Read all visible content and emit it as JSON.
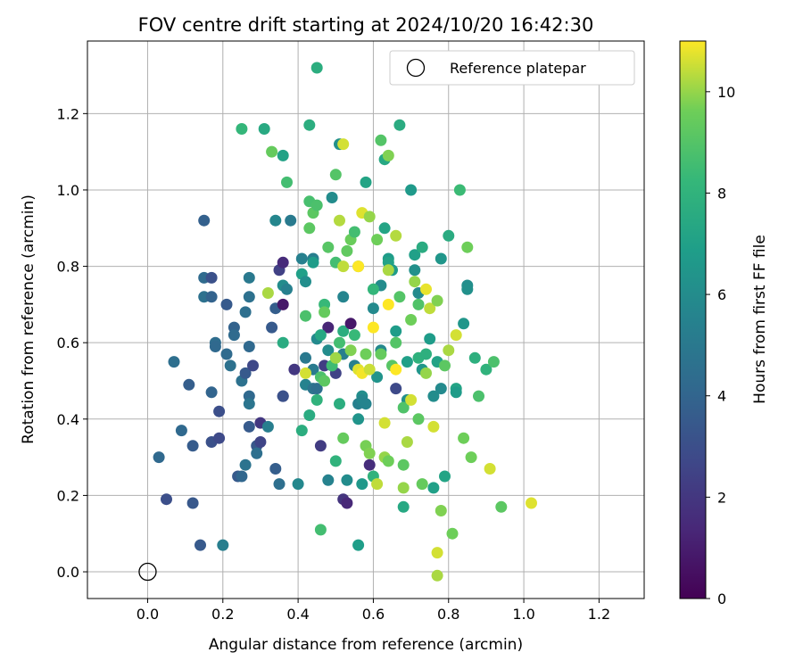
{
  "colors": {
    "background": "#ffffff",
    "grid": "#b0b0b0",
    "reference_marker": "#000000",
    "colormap": "viridis"
  },
  "chart_data": {
    "type": "scatter",
    "title": "FOV centre drift starting at 2024/10/20 16:42:30",
    "xlabel": "Angular distance from reference (arcmin)",
    "ylabel": "Rotation from reference (arcmin)",
    "xlim": [
      -0.16,
      1.32
    ],
    "ylim": [
      -0.07,
      1.39
    ],
    "xticks": [
      0.0,
      0.2,
      0.4,
      0.6,
      0.8,
      1.0,
      1.2
    ],
    "xtick_labels": [
      "0.0",
      "0.2",
      "0.4",
      "0.6",
      "0.8",
      "1.0",
      "1.2"
    ],
    "yticks": [
      0.0,
      0.2,
      0.4,
      0.6,
      0.8,
      1.0,
      1.2
    ],
    "ytick_labels": [
      "0.0",
      "0.2",
      "0.4",
      "0.6",
      "0.8",
      "1.0",
      "1.2"
    ],
    "grid": true,
    "legend": {
      "position": "top-right",
      "entries": [
        {
          "label": "Reference platepar",
          "marker": "open-circle"
        }
      ]
    },
    "reference_point": {
      "x": 0.0,
      "y": 0.0
    },
    "colorbar": {
      "label": "Hours from first FF file",
      "min": 0,
      "max": 11,
      "ticks": [
        0,
        2,
        4,
        6,
        8,
        10
      ],
      "tick_labels": [
        "0",
        "2",
        "4",
        "6",
        "8",
        "10"
      ]
    },
    "points": [
      [
        0.03,
        0.3,
        4.2
      ],
      [
        0.05,
        0.19,
        3.0
      ],
      [
        0.07,
        0.55,
        4.5
      ],
      [
        0.09,
        0.37,
        4.2
      ],
      [
        0.11,
        0.49,
        3.7
      ],
      [
        0.12,
        0.18,
        3.4
      ],
      [
        0.12,
        0.33,
        3.6
      ],
      [
        0.14,
        0.07,
        3.5
      ],
      [
        0.15,
        0.92,
        3.8
      ],
      [
        0.15,
        0.77,
        4.3
      ],
      [
        0.15,
        0.72,
        4.6
      ],
      [
        0.17,
        0.77,
        3.1
      ],
      [
        0.17,
        0.72,
        3.9
      ],
      [
        0.17,
        0.47,
        4.0
      ],
      [
        0.17,
        0.34,
        3.1
      ],
      [
        0.18,
        0.6,
        4.4
      ],
      [
        0.18,
        0.59,
        4.2
      ],
      [
        0.19,
        0.42,
        3.0
      ],
      [
        0.19,
        0.35,
        2.8
      ],
      [
        0.2,
        0.07,
        5.3
      ],
      [
        0.21,
        0.7,
        3.5
      ],
      [
        0.21,
        0.57,
        4.3
      ],
      [
        0.22,
        0.54,
        4.6
      ],
      [
        0.23,
        0.64,
        3.9
      ],
      [
        0.23,
        0.62,
        4.3
      ],
      [
        0.24,
        0.25,
        3.5
      ],
      [
        0.25,
        0.25,
        4.1
      ],
      [
        0.25,
        0.5,
        4.6
      ],
      [
        0.26,
        0.68,
        4.5
      ],
      [
        0.26,
        0.52,
        3.5
      ],
      [
        0.26,
        0.28,
        4.7
      ],
      [
        0.27,
        0.72,
        4.6
      ],
      [
        0.27,
        0.77,
        5.0
      ],
      [
        0.27,
        0.59,
        4.2
      ],
      [
        0.27,
        0.46,
        4.2
      ],
      [
        0.27,
        0.44,
        4.8
      ],
      [
        0.27,
        0.38,
        3.5
      ],
      [
        0.28,
        0.54,
        2.7
      ],
      [
        0.29,
        0.33,
        3.4
      ],
      [
        0.29,
        0.31,
        4.5
      ],
      [
        0.3,
        0.39,
        2.0
      ],
      [
        0.3,
        0.34,
        2.6
      ],
      [
        0.32,
        0.38,
        5.3
      ],
      [
        0.33,
        0.64,
        3.5
      ],
      [
        0.34,
        0.69,
        3.7
      ],
      [
        0.34,
        0.27,
        3.7
      ],
      [
        0.34,
        0.92,
        5.7
      ],
      [
        0.35,
        0.79,
        2.4
      ],
      [
        0.36,
        0.81,
        1.5
      ],
      [
        0.36,
        0.75,
        6.0
      ],
      [
        0.36,
        0.7,
        0.8
      ],
      [
        0.36,
        0.46,
        2.6
      ],
      [
        0.36,
        0.46,
        3.1
      ],
      [
        0.35,
        0.23,
        4.5
      ],
      [
        0.37,
        0.74,
        5.4
      ],
      [
        0.38,
        0.92,
        5.1
      ],
      [
        0.39,
        0.53,
        2.0
      ],
      [
        0.4,
        0.23,
        5.8
      ],
      [
        0.41,
        0.78,
        7.0
      ],
      [
        0.41,
        0.82,
        5.4
      ],
      [
        0.42,
        0.76,
        6.1
      ],
      [
        0.42,
        0.56,
        5.0
      ],
      [
        0.42,
        0.49,
        5.5
      ],
      [
        0.43,
        0.41,
        7.6
      ],
      [
        0.44,
        0.82,
        5.3
      ],
      [
        0.44,
        0.81,
        6.8
      ],
      [
        0.44,
        0.53,
        5.1
      ],
      [
        0.44,
        0.48,
        4.8
      ],
      [
        0.45,
        0.61,
        5.9
      ],
      [
        0.45,
        0.48,
        4.5
      ],
      [
        0.46,
        0.33,
        2.2
      ],
      [
        0.46,
        0.11,
        8.6
      ],
      [
        0.47,
        0.54,
        2.3
      ],
      [
        0.48,
        0.64,
        1.3
      ],
      [
        0.48,
        0.58,
        6.0
      ],
      [
        0.48,
        0.24,
        5.5
      ],
      [
        0.49,
        0.98,
        6.0
      ],
      [
        0.5,
        0.52,
        2.5
      ],
      [
        0.5,
        0.29,
        8.0
      ],
      [
        0.51,
        1.12,
        6.2
      ],
      [
        0.52,
        0.72,
        5.6
      ],
      [
        0.52,
        0.63,
        7.7
      ],
      [
        0.52,
        0.57,
        5.3
      ],
      [
        0.52,
        0.19,
        1.9
      ],
      [
        0.53,
        0.18,
        1.4
      ],
      [
        0.53,
        0.24,
        6.0
      ],
      [
        0.54,
        0.65,
        0.8
      ],
      [
        0.55,
        0.54,
        5.4
      ],
      [
        0.56,
        0.44,
        5.4
      ],
      [
        0.56,
        0.4,
        6.4
      ],
      [
        0.56,
        0.07,
        6.9
      ],
      [
        0.57,
        0.46,
        6.1
      ],
      [
        0.57,
        0.45,
        5.7
      ],
      [
        0.57,
        0.23,
        6.6
      ],
      [
        0.58,
        1.02,
        7.2
      ],
      [
        0.58,
        0.44,
        5.6
      ],
      [
        0.59,
        0.28,
        1.6
      ],
      [
        0.6,
        0.69,
        5.9
      ],
      [
        0.61,
        0.51,
        6.4
      ],
      [
        0.62,
        0.75,
        6.0
      ],
      [
        0.62,
        0.58,
        5.8
      ],
      [
        0.63,
        1.08,
        7.4
      ],
      [
        0.63,
        0.9,
        7.2
      ],
      [
        0.64,
        0.82,
        6.8
      ],
      [
        0.64,
        0.81,
        7.1
      ],
      [
        0.65,
        0.79,
        6.8
      ],
      [
        0.66,
        0.63,
        6.8
      ],
      [
        0.66,
        0.48,
        2.8
      ],
      [
        0.67,
        1.17,
        7.6
      ],
      [
        0.68,
        0.17,
        7.4
      ],
      [
        0.69,
        0.55,
        7.0
      ],
      [
        0.69,
        0.45,
        6.2
      ],
      [
        0.7,
        1.0,
        6.7
      ],
      [
        0.71,
        0.83,
        7.0
      ],
      [
        0.71,
        0.79,
        6.2
      ],
      [
        0.72,
        0.73,
        5.9
      ],
      [
        0.72,
        0.56,
        7.9
      ],
      [
        0.73,
        0.85,
        7.6
      ],
      [
        0.73,
        0.53,
        6.5
      ],
      [
        0.74,
        0.57,
        7.8
      ],
      [
        0.75,
        0.61,
        6.8
      ],
      [
        0.76,
        0.46,
        6.0
      ],
      [
        0.76,
        0.22,
        7.0
      ],
      [
        0.77,
        0.55,
        7.1
      ],
      [
        0.78,
        0.82,
        6.5
      ],
      [
        0.78,
        0.48,
        5.9
      ],
      [
        0.79,
        0.25,
        7.2
      ],
      [
        0.8,
        0.88,
        7.6
      ],
      [
        0.82,
        0.48,
        7.2
      ],
      [
        0.82,
        0.47,
        6.8
      ],
      [
        0.83,
        1.0,
        8.4
      ],
      [
        0.84,
        0.65,
        6.5
      ],
      [
        0.85,
        0.75,
        6.1
      ],
      [
        0.85,
        0.74,
        6.2
      ],
      [
        0.87,
        0.56,
        7.8
      ],
      [
        0.9,
        0.53,
        8.0
      ],
      [
        0.92,
        0.55,
        8.8
      ],
      [
        0.25,
        1.16,
        8.2
      ],
      [
        0.31,
        1.16,
        7.5
      ],
      [
        0.42,
        0.67,
        8.8
      ],
      [
        0.32,
        0.73,
        10.2
      ],
      [
        0.33,
        1.1,
        9.4
      ],
      [
        0.36,
        1.09,
        7.1
      ],
      [
        0.37,
        1.02,
        8.6
      ],
      [
        0.36,
        0.6,
        7.6
      ],
      [
        0.41,
        0.37,
        7.7
      ],
      [
        0.42,
        0.52,
        10.6
      ],
      [
        0.43,
        0.97,
        8.7
      ],
      [
        0.43,
        0.9,
        9.2
      ],
      [
        0.43,
        1.17,
        7.7
      ],
      [
        0.44,
        0.94,
        9.2
      ],
      [
        0.45,
        0.96,
        8.8
      ],
      [
        0.45,
        0.45,
        8.0
      ],
      [
        0.45,
        1.32,
        7.7
      ],
      [
        0.46,
        0.62,
        7.4
      ],
      [
        0.46,
        0.51,
        8.8
      ],
      [
        0.47,
        0.5,
        9.2
      ],
      [
        0.47,
        0.7,
        8.3
      ],
      [
        0.47,
        0.68,
        9.4
      ],
      [
        0.48,
        0.85,
        9.1
      ],
      [
        0.49,
        0.54,
        8.5
      ],
      [
        0.5,
        0.56,
        10.1
      ],
      [
        0.5,
        0.81,
        8.6
      ],
      [
        0.5,
        1.04,
        9.0
      ],
      [
        0.51,
        0.92,
        10.3
      ],
      [
        0.51,
        0.6,
        8.6
      ],
      [
        0.51,
        0.44,
        7.7
      ],
      [
        0.52,
        0.8,
        10.4
      ],
      [
        0.52,
        1.12,
        10.6
      ],
      [
        0.52,
        0.35,
        9.4
      ],
      [
        0.53,
        0.84,
        9.3
      ],
      [
        0.54,
        0.87,
        9.5
      ],
      [
        0.54,
        0.58,
        9.8
      ],
      [
        0.55,
        0.62,
        8.3
      ],
      [
        0.55,
        0.89,
        8.6
      ],
      [
        0.56,
        0.53,
        10.7
      ],
      [
        0.56,
        0.8,
        9.0
      ],
      [
        0.57,
        0.94,
        10.7
      ],
      [
        0.57,
        0.52,
        10.9
      ],
      [
        0.58,
        0.57,
        9.6
      ],
      [
        0.58,
        0.33,
        9.7
      ],
      [
        0.59,
        0.93,
        10.0
      ],
      [
        0.59,
        0.53,
        10.5
      ],
      [
        0.59,
        0.31,
        9.8
      ],
      [
        0.6,
        0.74,
        8.2
      ],
      [
        0.6,
        0.25,
        8.0
      ],
      [
        0.61,
        0.87,
        9.6
      ],
      [
        0.61,
        0.23,
        10.4
      ],
      [
        0.62,
        1.13,
        9.0
      ],
      [
        0.62,
        0.57,
        9.4
      ],
      [
        0.63,
        0.39,
        10.6
      ],
      [
        0.63,
        0.3,
        10.0
      ],
      [
        0.64,
        1.09,
        9.8
      ],
      [
        0.64,
        0.79,
        10.2
      ],
      [
        0.64,
        0.29,
        9.6
      ],
      [
        0.65,
        0.54,
        9.1
      ],
      [
        0.66,
        0.6,
        9.0
      ],
      [
        0.66,
        0.88,
        10.3
      ],
      [
        0.67,
        0.72,
        9.0
      ],
      [
        0.68,
        0.43,
        8.9
      ],
      [
        0.68,
        0.28,
        9.2
      ],
      [
        0.68,
        0.22,
        10.0
      ],
      [
        0.69,
        0.34,
        10.2
      ],
      [
        0.7,
        0.45,
        10.6
      ],
      [
        0.7,
        0.66,
        9.6
      ],
      [
        0.71,
        0.76,
        10.0
      ],
      [
        0.72,
        0.7,
        8.9
      ],
      [
        0.72,
        0.4,
        9.2
      ],
      [
        0.73,
        0.23,
        9.4
      ],
      [
        0.74,
        0.74,
        10.8
      ],
      [
        0.74,
        0.52,
        10.0
      ],
      [
        0.75,
        0.69,
        10.4
      ],
      [
        0.76,
        0.38,
        10.6
      ],
      [
        0.77,
        0.71,
        9.8
      ],
      [
        0.77,
        0.05,
        10.6
      ],
      [
        0.77,
        -0.01,
        10.2
      ],
      [
        0.78,
        0.16,
        9.8
      ],
      [
        0.79,
        0.54,
        9.2
      ],
      [
        0.8,
        0.58,
        10.2
      ],
      [
        0.81,
        0.1,
        9.6
      ],
      [
        0.82,
        0.62,
        10.6
      ],
      [
        0.84,
        0.35,
        9.6
      ],
      [
        0.85,
        0.85,
        9.6
      ],
      [
        0.86,
        0.3,
        9.6
      ],
      [
        0.88,
        0.46,
        8.8
      ],
      [
        0.91,
        0.27,
        10.6
      ],
      [
        0.94,
        0.17,
        9.2
      ],
      [
        1.02,
        0.18,
        10.7
      ],
      [
        0.56,
        0.8,
        11.0
      ],
      [
        0.6,
        0.64,
        11.0
      ],
      [
        0.64,
        0.7,
        11.0
      ],
      [
        0.66,
        0.53,
        11.0
      ]
    ]
  }
}
